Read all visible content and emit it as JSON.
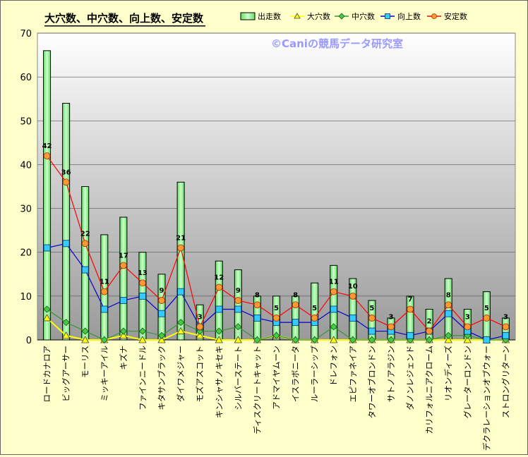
{
  "chart_data": {
    "type": "bar",
    "title": "大穴数、中穴数、向上数、安定数",
    "watermark": "©Caniの競馬データ研究室",
    "ylim": [
      0,
      70
    ],
    "yticks": [
      0,
      10,
      20,
      30,
      40,
      50,
      60,
      70
    ],
    "grid": true,
    "legend_position": "top-right",
    "categories": [
      "ロードカナロア",
      "ビッグアーサー",
      "モーリス",
      "ミッキーアイル",
      "キズナ",
      "ファインニードル",
      "キタサンブラック",
      "ダイワメジャー",
      "モズアスコット",
      "キンシャサノキセキ",
      "シルバーステート",
      "ディスクリートキャット",
      "アドマイヤムーン",
      "イスラボニータ",
      "ルーラーシップ",
      "ドレフォン",
      "エピファネイア",
      "タワーオブロンドン",
      "サトノアラジン",
      "ダノンレジェンド",
      "カリフォルニアクローム",
      "リオンディーズ",
      "グレーターロンドン",
      "デクラレーションオブウォー",
      "ストロングリターン"
    ],
    "series": [
      {
        "name": "出走数",
        "kind": "bar",
        "color": "#99ff99",
        "values": [
          66,
          54,
          35,
          24,
          28,
          20,
          15,
          36,
          8,
          18,
          16,
          10,
          10,
          10,
          13,
          17,
          14,
          9,
          5,
          10,
          7,
          14,
          7,
          11,
          5
        ]
      },
      {
        "name": "大穴数",
        "kind": "line",
        "color": "#ffff00",
        "values": [
          5,
          1,
          0,
          0,
          1,
          0,
          0,
          2,
          1,
          0,
          0,
          0,
          1,
          0,
          0,
          0,
          0,
          0,
          0,
          0,
          0,
          0,
          0,
          0,
          0
        ]
      },
      {
        "name": "中穴数",
        "kind": "line",
        "color": "#339933",
        "values": [
          7,
          4,
          2,
          0,
          2,
          2,
          1,
          4,
          2,
          2,
          3,
          0,
          1,
          0,
          0,
          3,
          0,
          0,
          0,
          0,
          0,
          1,
          1,
          0,
          0
        ]
      },
      {
        "name": "向上数",
        "kind": "line",
        "color": "#0000cc",
        "values": [
          21,
          22,
          16,
          7,
          9,
          10,
          6,
          11,
          3,
          7,
          7,
          5,
          4,
          4,
          4,
          7,
          5,
          2,
          2,
          1,
          2,
          6,
          2,
          0,
          1
        ]
      },
      {
        "name": "安定数",
        "kind": "line",
        "color": "#ff0000",
        "values": [
          42,
          36,
          22,
          11,
          17,
          13,
          9,
          21,
          3,
          12,
          9,
          8,
          5,
          8,
          5,
          11,
          10,
          5,
          3,
          7,
          2,
          8,
          3,
          5,
          3
        ]
      }
    ]
  }
}
